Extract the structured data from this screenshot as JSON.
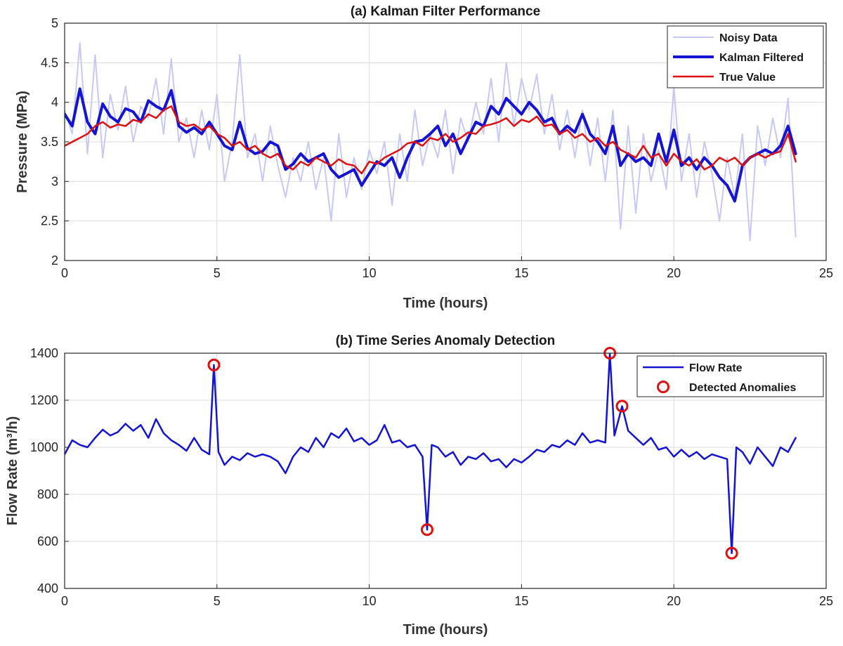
{
  "chart_data": [
    {
      "type": "line",
      "title": "(a) Kalman Filter Performance",
      "xlabel": "Time (hours)",
      "ylabel": "Pressure (MPa)",
      "xlim": [
        0,
        25
      ],
      "ylim": [
        2,
        5
      ],
      "xticks": [
        0,
        5,
        10,
        15,
        20,
        25
      ],
      "yticks": [
        2,
        2.5,
        3,
        3.5,
        4,
        4.5,
        5
      ],
      "grid": true,
      "legend_position": "top-right",
      "series": [
        {
          "name": "Noisy Data",
          "color": "#c8c8f5",
          "x": [
            0,
            0.25,
            0.5,
            0.75,
            1,
            1.25,
            1.5,
            1.75,
            2,
            2.25,
            2.5,
            2.75,
            3,
            3.25,
            3.5,
            3.75,
            4,
            4.25,
            4.5,
            4.75,
            5,
            5.25,
            5.5,
            5.75,
            6,
            6.25,
            6.5,
            6.75,
            7,
            7.25,
            7.5,
            7.75,
            8,
            8.25,
            8.5,
            8.75,
            9,
            9.25,
            9.5,
            9.75,
            10,
            10.25,
            10.5,
            10.75,
            11,
            11.25,
            11.5,
            11.75,
            12,
            12.25,
            12.5,
            12.75,
            13,
            13.25,
            13.5,
            13.75,
            14,
            14.25,
            14.5,
            14.75,
            15,
            15.25,
            15.5,
            15.75,
            16,
            16.25,
            16.5,
            16.75,
            17,
            17.25,
            17.5,
            17.75,
            18,
            18.25,
            18.5,
            18.75,
            19,
            19.25,
            19.5,
            19.75,
            20,
            20.25,
            20.5,
            20.75,
            21,
            21.25,
            21.5,
            21.75,
            22,
            22.25,
            22.5,
            22.75,
            23,
            23.25,
            23.5,
            23.75,
            24
          ],
          "y": [
            3.9,
            3.6,
            4.75,
            3.35,
            4.6,
            3.3,
            4.1,
            3.65,
            4.2,
            3.5,
            3.95,
            3.8,
            4.3,
            3.6,
            4.55,
            3.5,
            3.8,
            3.3,
            3.9,
            3.4,
            4.1,
            3.0,
            3.5,
            4.6,
            3.3,
            3.6,
            3.0,
            3.7,
            3.2,
            2.8,
            3.3,
            3.0,
            3.5,
            2.9,
            3.3,
            2.5,
            3.6,
            2.8,
            3.3,
            2.9,
            3.4,
            3.1,
            3.5,
            2.7,
            3.6,
            3.0,
            3.9,
            3.2,
            3.6,
            3.3,
            3.9,
            3.1,
            3.8,
            3.5,
            4.0,
            3.6,
            4.3,
            3.5,
            4.5,
            3.7,
            4.3,
            3.9,
            4.35,
            3.6,
            4.1,
            3.4,
            3.9,
            3.3,
            3.9,
            3.2,
            3.8,
            3.0,
            3.9,
            2.4,
            3.7,
            2.6,
            3.6,
            3.0,
            3.4,
            2.9,
            4.2,
            3.0,
            3.6,
            2.8,
            3.5,
            3.1,
            2.5,
            3.3,
            2.8,
            3.6,
            2.25,
            3.7,
            3.2,
            3.8,
            3.3,
            4.05,
            2.3
          ]
        },
        {
          "name": "Kalman Filtered",
          "color": "#1414d2",
          "x": [
            0,
            0.25,
            0.5,
            0.75,
            1,
            1.25,
            1.5,
            1.75,
            2,
            2.25,
            2.5,
            2.75,
            3,
            3.25,
            3.5,
            3.75,
            4,
            4.25,
            4.5,
            4.75,
            5,
            5.25,
            5.5,
            5.75,
            6,
            6.25,
            6.5,
            6.75,
            7,
            7.25,
            7.5,
            7.75,
            8,
            8.25,
            8.5,
            8.75,
            9,
            9.25,
            9.5,
            9.75,
            10,
            10.25,
            10.5,
            10.75,
            11,
            11.25,
            11.5,
            11.75,
            12,
            12.25,
            12.5,
            12.75,
            13,
            13.25,
            13.5,
            13.75,
            14,
            14.25,
            14.5,
            14.75,
            15,
            15.25,
            15.5,
            15.75,
            16,
            16.25,
            16.5,
            16.75,
            17,
            17.25,
            17.5,
            17.75,
            18,
            18.25,
            18.5,
            18.75,
            19,
            19.25,
            19.5,
            19.75,
            20,
            20.25,
            20.5,
            20.75,
            21,
            21.25,
            21.5,
            21.75,
            22,
            22.25,
            22.5,
            22.75,
            23,
            23.25,
            23.5,
            23.75,
            24
          ],
          "y": [
            3.85,
            3.7,
            4.17,
            3.75,
            3.6,
            3.98,
            3.82,
            3.75,
            3.92,
            3.88,
            3.75,
            4.02,
            3.95,
            3.9,
            4.15,
            3.7,
            3.62,
            3.68,
            3.6,
            3.75,
            3.6,
            3.45,
            3.4,
            3.75,
            3.42,
            3.35,
            3.38,
            3.5,
            3.45,
            3.15,
            3.22,
            3.35,
            3.25,
            3.3,
            3.35,
            3.15,
            3.05,
            3.1,
            3.15,
            2.95,
            3.1,
            3.25,
            3.2,
            3.3,
            3.05,
            3.3,
            3.5,
            3.52,
            3.6,
            3.7,
            3.45,
            3.6,
            3.35,
            3.55,
            3.75,
            3.7,
            3.95,
            3.85,
            4.05,
            3.95,
            3.85,
            4.0,
            3.9,
            3.75,
            3.8,
            3.6,
            3.7,
            3.62,
            3.85,
            3.6,
            3.5,
            3.35,
            3.7,
            3.2,
            3.35,
            3.25,
            3.3,
            3.2,
            3.6,
            3.25,
            3.65,
            3.2,
            3.3,
            3.15,
            3.3,
            3.2,
            3.05,
            2.95,
            2.75,
            3.2,
            3.3,
            3.35,
            3.4,
            3.35,
            3.45,
            3.7,
            3.35
          ]
        },
        {
          "name": "True Value",
          "color": "#e01010",
          "x": [
            0,
            0.25,
            0.5,
            0.75,
            1,
            1.25,
            1.5,
            1.75,
            2,
            2.25,
            2.5,
            2.75,
            3,
            3.25,
            3.5,
            3.75,
            4,
            4.25,
            4.5,
            4.75,
            5,
            5.25,
            5.5,
            5.75,
            6,
            6.25,
            6.5,
            6.75,
            7,
            7.25,
            7.5,
            7.75,
            8,
            8.25,
            8.5,
            8.75,
            9,
            9.25,
            9.5,
            9.75,
            10,
            10.25,
            10.5,
            10.75,
            11,
            11.25,
            11.5,
            11.75,
            12,
            12.25,
            12.5,
            12.75,
            13,
            13.25,
            13.5,
            13.75,
            14,
            14.25,
            14.5,
            14.75,
            15,
            15.25,
            15.5,
            15.75,
            16,
            16.25,
            16.5,
            16.75,
            17,
            17.25,
            17.5,
            17.75,
            18,
            18.25,
            18.5,
            18.75,
            19,
            19.25,
            19.5,
            19.75,
            20,
            20.25,
            20.5,
            20.75,
            21,
            21.25,
            21.5,
            21.75,
            22,
            22.25,
            22.5,
            22.75,
            23,
            23.25,
            23.5,
            23.75,
            24
          ],
          "y": [
            3.45,
            3.5,
            3.55,
            3.6,
            3.7,
            3.75,
            3.68,
            3.72,
            3.7,
            3.78,
            3.75,
            3.85,
            3.8,
            3.9,
            3.95,
            3.75,
            3.7,
            3.72,
            3.65,
            3.7,
            3.6,
            3.55,
            3.45,
            3.5,
            3.4,
            3.45,
            3.35,
            3.3,
            3.35,
            3.2,
            3.15,
            3.25,
            3.2,
            3.3,
            3.25,
            3.2,
            3.28,
            3.22,
            3.2,
            3.1,
            3.25,
            3.22,
            3.3,
            3.35,
            3.4,
            3.48,
            3.5,
            3.45,
            3.55,
            3.52,
            3.6,
            3.5,
            3.55,
            3.62,
            3.6,
            3.7,
            3.72,
            3.75,
            3.8,
            3.7,
            3.78,
            3.75,
            3.82,
            3.7,
            3.72,
            3.6,
            3.65,
            3.55,
            3.6,
            3.5,
            3.55,
            3.45,
            3.5,
            3.4,
            3.35,
            3.3,
            3.45,
            3.3,
            3.35,
            3.2,
            3.35,
            3.25,
            3.2,
            3.28,
            3.15,
            3.2,
            3.3,
            3.25,
            3.3,
            3.2,
            3.3,
            3.35,
            3.3,
            3.35,
            3.38,
            3.6,
            3.25
          ]
        }
      ]
    },
    {
      "type": "line",
      "title": "(b) Time Series Anomaly Detection",
      "xlabel": "Time (hours)",
      "ylabel": "Flow Rate (m³/h)",
      "xlim": [
        0,
        25
      ],
      "ylim": [
        400,
        1400
      ],
      "xticks": [
        0,
        5,
        10,
        15,
        20,
        25
      ],
      "yticks": [
        400,
        600,
        800,
        1000,
        1200,
        1400
      ],
      "grid": true,
      "legend_position": "top-right",
      "series": [
        {
          "name": "Flow Rate",
          "color": "#1414d2",
          "x": [
            0,
            0.25,
            0.5,
            0.75,
            1,
            1.25,
            1.5,
            1.75,
            2,
            2.25,
            2.5,
            2.75,
            3,
            3.25,
            3.5,
            3.75,
            4,
            4.25,
            4.5,
            4.75,
            4.9,
            5.05,
            5.25,
            5.5,
            5.75,
            6,
            6.25,
            6.5,
            6.75,
            7,
            7.25,
            7.5,
            7.75,
            8,
            8.25,
            8.5,
            8.75,
            9,
            9.25,
            9.5,
            9.75,
            10,
            10.25,
            10.5,
            10.75,
            11,
            11.25,
            11.5,
            11.75,
            11.9,
            12.05,
            12.25,
            12.5,
            12.75,
            13,
            13.25,
            13.5,
            13.75,
            14,
            14.25,
            14.5,
            14.75,
            15,
            15.25,
            15.5,
            15.75,
            16,
            16.25,
            16.5,
            16.75,
            17,
            17.25,
            17.5,
            17.75,
            17.9,
            18.05,
            18.3,
            18.5,
            18.75,
            19,
            19.25,
            19.5,
            19.75,
            20,
            20.25,
            20.5,
            20.75,
            21,
            21.25,
            21.5,
            21.75,
            21.9,
            22.05,
            22.25,
            22.5,
            22.75,
            23,
            23.25,
            23.5,
            23.75,
            24
          ],
          "y": [
            970,
            1030,
            1010,
            1000,
            1040,
            1075,
            1050,
            1065,
            1100,
            1070,
            1095,
            1040,
            1120,
            1060,
            1030,
            1010,
            985,
            1040,
            990,
            970,
            1350,
            980,
            925,
            960,
            945,
            975,
            960,
            970,
            960,
            940,
            890,
            960,
            1000,
            980,
            1040,
            1000,
            1060,
            1040,
            1080,
            1025,
            1040,
            1010,
            1030,
            1095,
            1020,
            1030,
            1000,
            1010,
            960,
            650,
            1010,
            1000,
            960,
            980,
            925,
            960,
            950,
            975,
            940,
            950,
            915,
            950,
            935,
            960,
            990,
            980,
            1010,
            1000,
            1030,
            1010,
            1060,
            1020,
            1030,
            1020,
            1400,
            1050,
            1175,
            1070,
            1040,
            1010,
            1040,
            990,
            1000,
            960,
            990,
            960,
            980,
            950,
            970,
            960,
            950,
            550,
            1000,
            980,
            930,
            1000,
            960,
            920,
            1000,
            980,
            1040
          ]
        },
        {
          "name": "Detected Anomalies",
          "color": "#e01010",
          "x": [
            4.9,
            11.9,
            17.9,
            18.3,
            21.9
          ],
          "y": [
            1350,
            650,
            1400,
            1175,
            550
          ]
        }
      ]
    }
  ]
}
